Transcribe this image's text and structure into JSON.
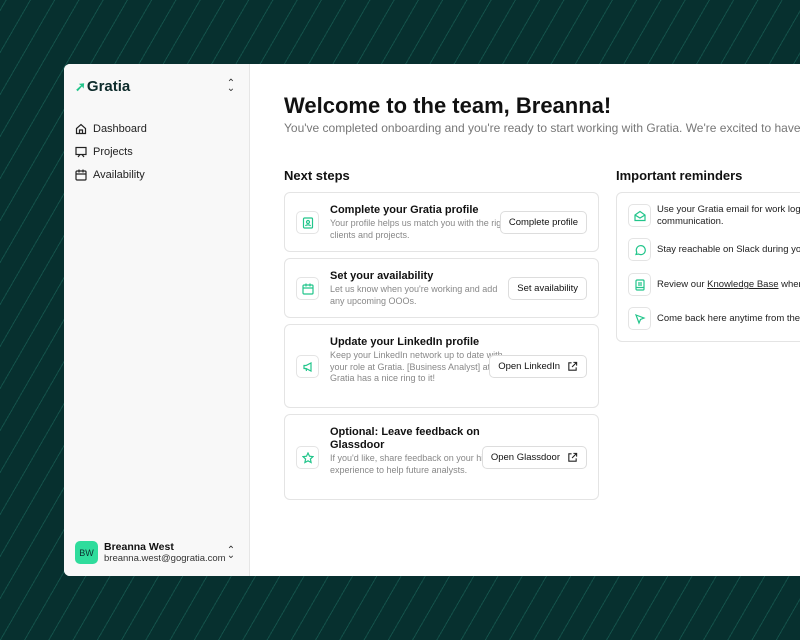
{
  "sidebar": {
    "brand": "Gratia",
    "items": [
      {
        "label": "Dashboard",
        "icon": "home-icon"
      },
      {
        "label": "Projects",
        "icon": "presentation-icon"
      },
      {
        "label": "Availability",
        "icon": "calendar-icon"
      }
    ],
    "user": {
      "initials": "BW",
      "name": "Breanna West",
      "email": "breanna.west@gogratia.com"
    }
  },
  "main": {
    "title": "Welcome to the team, Breanna!",
    "subtitle": "You've completed onboarding and you're ready to start working with Gratia. We're excited to have you!",
    "next_steps_heading": "Next steps",
    "steps": [
      {
        "title": "Complete your Gratia profile",
        "desc": "Your profile helps us match you with the right clients and projects.",
        "button": "Complete profile",
        "icon": "profile-badge-icon"
      },
      {
        "title": "Set your availability",
        "desc": "Let us know when you're working and add any upcoming OOOs.",
        "button": "Set availability",
        "icon": "calendar-icon"
      },
      {
        "title": "Update your LinkedIn profile",
        "desc": "Keep your LinkedIn network up to date with your role at Gratia. [Business Analyst] at Gratia has a nice ring to it!",
        "button": "Open LinkedIn",
        "icon": "megaphone-icon"
      },
      {
        "title": "Optional: Leave feedback on Glassdoor",
        "desc": "If you'd like, share feedback on your hiring experience to help future analysts.",
        "button": "Open Glassdoor",
        "icon": "star-icon"
      }
    ],
    "reminders_heading": "Important reminders",
    "reminders": [
      {
        "text": "Use your Gratia email for work logins and",
        "text2": "communication.",
        "icon": "mail-open-icon"
      },
      {
        "text": "Stay reachable on Slack during your working hours.",
        "icon": "chat-icon"
      },
      {
        "pre": "Review our ",
        "link": "Knowledge Base",
        "post": " when you have questions.",
        "icon": "book-icon"
      },
      {
        "text": "Come back here anytime from the menu.",
        "icon": "cursor-icon"
      }
    ]
  },
  "colors": {
    "accent": "#22c58b",
    "background": "#07302f"
  }
}
